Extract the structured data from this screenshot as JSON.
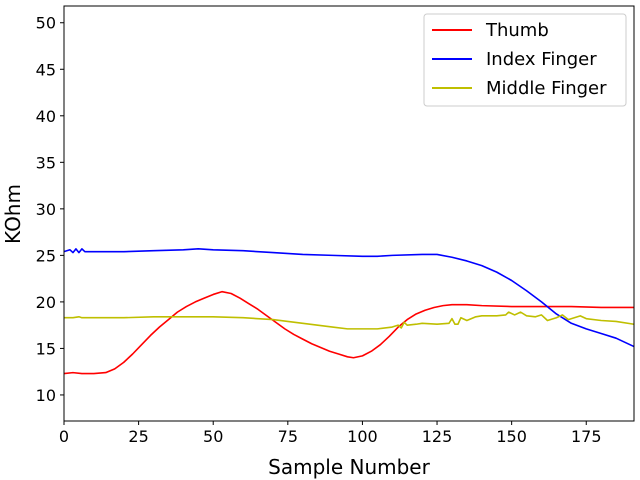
{
  "chart_data": {
    "type": "line",
    "xlabel": "Sample Number",
    "ylabel": "KOhm",
    "xlim": [
      0,
      191
    ],
    "ylim": [
      7.2,
      51.8
    ],
    "xticks": [
      0,
      25,
      50,
      75,
      100,
      125,
      150,
      175
    ],
    "yticks": [
      10,
      15,
      20,
      25,
      30,
      35,
      40,
      45,
      50
    ],
    "grid": false,
    "legend_position": "top-right",
    "series": [
      {
        "name": "Thumb",
        "color": "#ff0000",
        "points": [
          [
            0,
            12.3
          ],
          [
            3,
            12.4
          ],
          [
            6,
            12.3
          ],
          [
            10,
            12.3
          ],
          [
            14,
            12.4
          ],
          [
            17,
            12.8
          ],
          [
            20,
            13.5
          ],
          [
            23,
            14.4
          ],
          [
            26,
            15.4
          ],
          [
            29,
            16.4
          ],
          [
            32,
            17.3
          ],
          [
            35,
            18.1
          ],
          [
            38,
            18.9
          ],
          [
            41,
            19.5
          ],
          [
            44,
            20.0
          ],
          [
            47,
            20.4
          ],
          [
            50,
            20.8
          ],
          [
            53,
            21.1
          ],
          [
            56,
            20.9
          ],
          [
            59,
            20.4
          ],
          [
            62,
            19.8
          ],
          [
            65,
            19.2
          ],
          [
            68,
            18.5
          ],
          [
            71,
            17.8
          ],
          [
            74,
            17.1
          ],
          [
            77,
            16.5
          ],
          [
            80,
            16.0
          ],
          [
            83,
            15.5
          ],
          [
            86,
            15.1
          ],
          [
            89,
            14.7
          ],
          [
            92,
            14.4
          ],
          [
            95,
            14.1
          ],
          [
            97,
            14.0
          ],
          [
            100,
            14.2
          ],
          [
            103,
            14.7
          ],
          [
            106,
            15.4
          ],
          [
            109,
            16.3
          ],
          [
            112,
            17.3
          ],
          [
            115,
            18.1
          ],
          [
            118,
            18.7
          ],
          [
            121,
            19.1
          ],
          [
            124,
            19.4
          ],
          [
            127,
            19.6
          ],
          [
            130,
            19.7
          ],
          [
            135,
            19.7
          ],
          [
            140,
            19.6
          ],
          [
            150,
            19.5
          ],
          [
            160,
            19.5
          ],
          [
            170,
            19.5
          ],
          [
            180,
            19.4
          ],
          [
            191,
            19.4
          ]
        ]
      },
      {
        "name": "Index Finger",
        "color": "#0000ff",
        "points": [
          [
            0,
            25.4
          ],
          [
            2,
            25.6
          ],
          [
            3,
            25.3
          ],
          [
            4,
            25.7
          ],
          [
            5,
            25.3
          ],
          [
            6,
            25.7
          ],
          [
            7,
            25.4
          ],
          [
            10,
            25.4
          ],
          [
            20,
            25.4
          ],
          [
            30,
            25.5
          ],
          [
            40,
            25.6
          ],
          [
            45,
            25.7
          ],
          [
            50,
            25.6
          ],
          [
            60,
            25.5
          ],
          [
            70,
            25.3
          ],
          [
            80,
            25.1
          ],
          [
            90,
            25.0
          ],
          [
            100,
            24.9
          ],
          [
            105,
            24.9
          ],
          [
            110,
            25.0
          ],
          [
            120,
            25.1
          ],
          [
            125,
            25.1
          ],
          [
            130,
            24.8
          ],
          [
            135,
            24.4
          ],
          [
            140,
            23.9
          ],
          [
            145,
            23.2
          ],
          [
            150,
            22.3
          ],
          [
            155,
            21.2
          ],
          [
            160,
            20.0
          ],
          [
            165,
            18.7
          ],
          [
            170,
            17.7
          ],
          [
            175,
            17.1
          ],
          [
            180,
            16.6
          ],
          [
            185,
            16.1
          ],
          [
            191,
            15.2
          ]
        ]
      },
      {
        "name": "Middle Finger",
        "color": "#bfbf00",
        "points": [
          [
            0,
            18.3
          ],
          [
            3,
            18.3
          ],
          [
            5,
            18.4
          ],
          [
            6,
            18.3
          ],
          [
            10,
            18.3
          ],
          [
            20,
            18.3
          ],
          [
            30,
            18.4
          ],
          [
            40,
            18.4
          ],
          [
            50,
            18.4
          ],
          [
            60,
            18.3
          ],
          [
            65,
            18.2
          ],
          [
            70,
            18.1
          ],
          [
            75,
            17.9
          ],
          [
            80,
            17.7
          ],
          [
            85,
            17.5
          ],
          [
            90,
            17.3
          ],
          [
            95,
            17.1
          ],
          [
            100,
            17.1
          ],
          [
            105,
            17.1
          ],
          [
            110,
            17.3
          ],
          [
            112,
            17.5
          ],
          [
            113,
            17.2
          ],
          [
            114,
            17.8
          ],
          [
            115,
            17.5
          ],
          [
            118,
            17.6
          ],
          [
            120,
            17.7
          ],
          [
            125,
            17.6
          ],
          [
            129,
            17.7
          ],
          [
            130,
            18.2
          ],
          [
            131,
            17.6
          ],
          [
            132,
            17.6
          ],
          [
            133,
            18.3
          ],
          [
            135,
            18.0
          ],
          [
            138,
            18.4
          ],
          [
            140,
            18.5
          ],
          [
            145,
            18.5
          ],
          [
            148,
            18.6
          ],
          [
            149,
            18.9
          ],
          [
            151,
            18.6
          ],
          [
            153,
            18.9
          ],
          [
            155,
            18.5
          ],
          [
            158,
            18.4
          ],
          [
            160,
            18.6
          ],
          [
            162,
            18.0
          ],
          [
            165,
            18.3
          ],
          [
            167,
            18.6
          ],
          [
            169,
            18.1
          ],
          [
            171,
            18.3
          ],
          [
            173,
            18.5
          ],
          [
            175,
            18.2
          ],
          [
            180,
            18.0
          ],
          [
            185,
            17.9
          ],
          [
            191,
            17.6
          ]
        ]
      }
    ]
  }
}
